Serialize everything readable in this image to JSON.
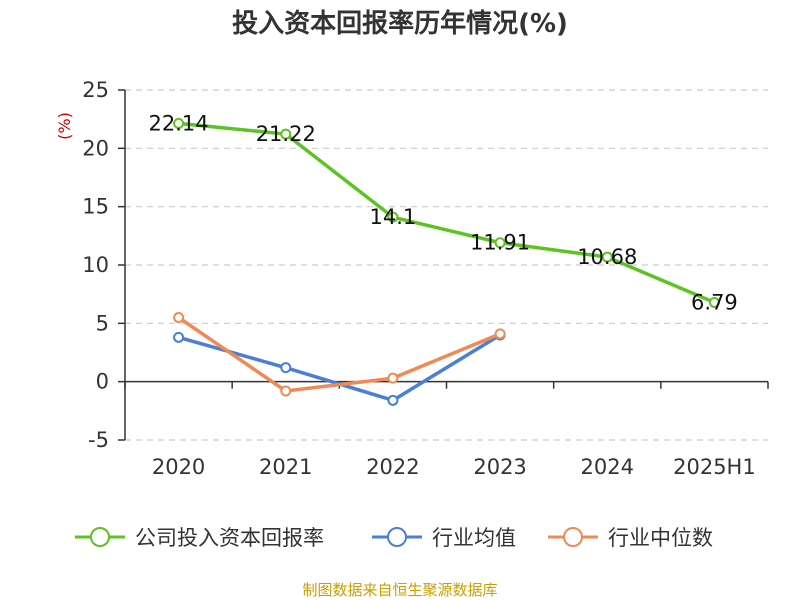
{
  "chart_data": {
    "type": "line",
    "title": "投入资本回报率历年情况(%)",
    "ylabel": "(%)",
    "categories": [
      "2020",
      "2021",
      "2022",
      "2023",
      "2024",
      "2025H1"
    ],
    "ylim": [
      -5,
      25
    ],
    "yticks": [
      "25",
      "20",
      "15",
      "10",
      "5",
      "0",
      "-5"
    ],
    "grid": true,
    "legend_position": "bottom",
    "series": [
      {
        "name": "公司投入资本回报率",
        "color": "#5cc322",
        "values": [
          22.14,
          21.22,
          14.1,
          11.91,
          10.68,
          6.79
        ],
        "labels": [
          "22.14",
          "21.22",
          "14.1",
          "11.91",
          "10.68",
          "6.79"
        ]
      },
      {
        "name": "行业均值",
        "color": "#4a7fd6",
        "values": [
          3.8,
          1.2,
          -1.6,
          4.0,
          null,
          null
        ]
      },
      {
        "name": "行业中位数",
        "color": "#f08a55",
        "values": [
          5.5,
          -0.8,
          0.3,
          4.1,
          null,
          null
        ]
      }
    ]
  },
  "source": "制图数据来自恒生聚源数据库"
}
